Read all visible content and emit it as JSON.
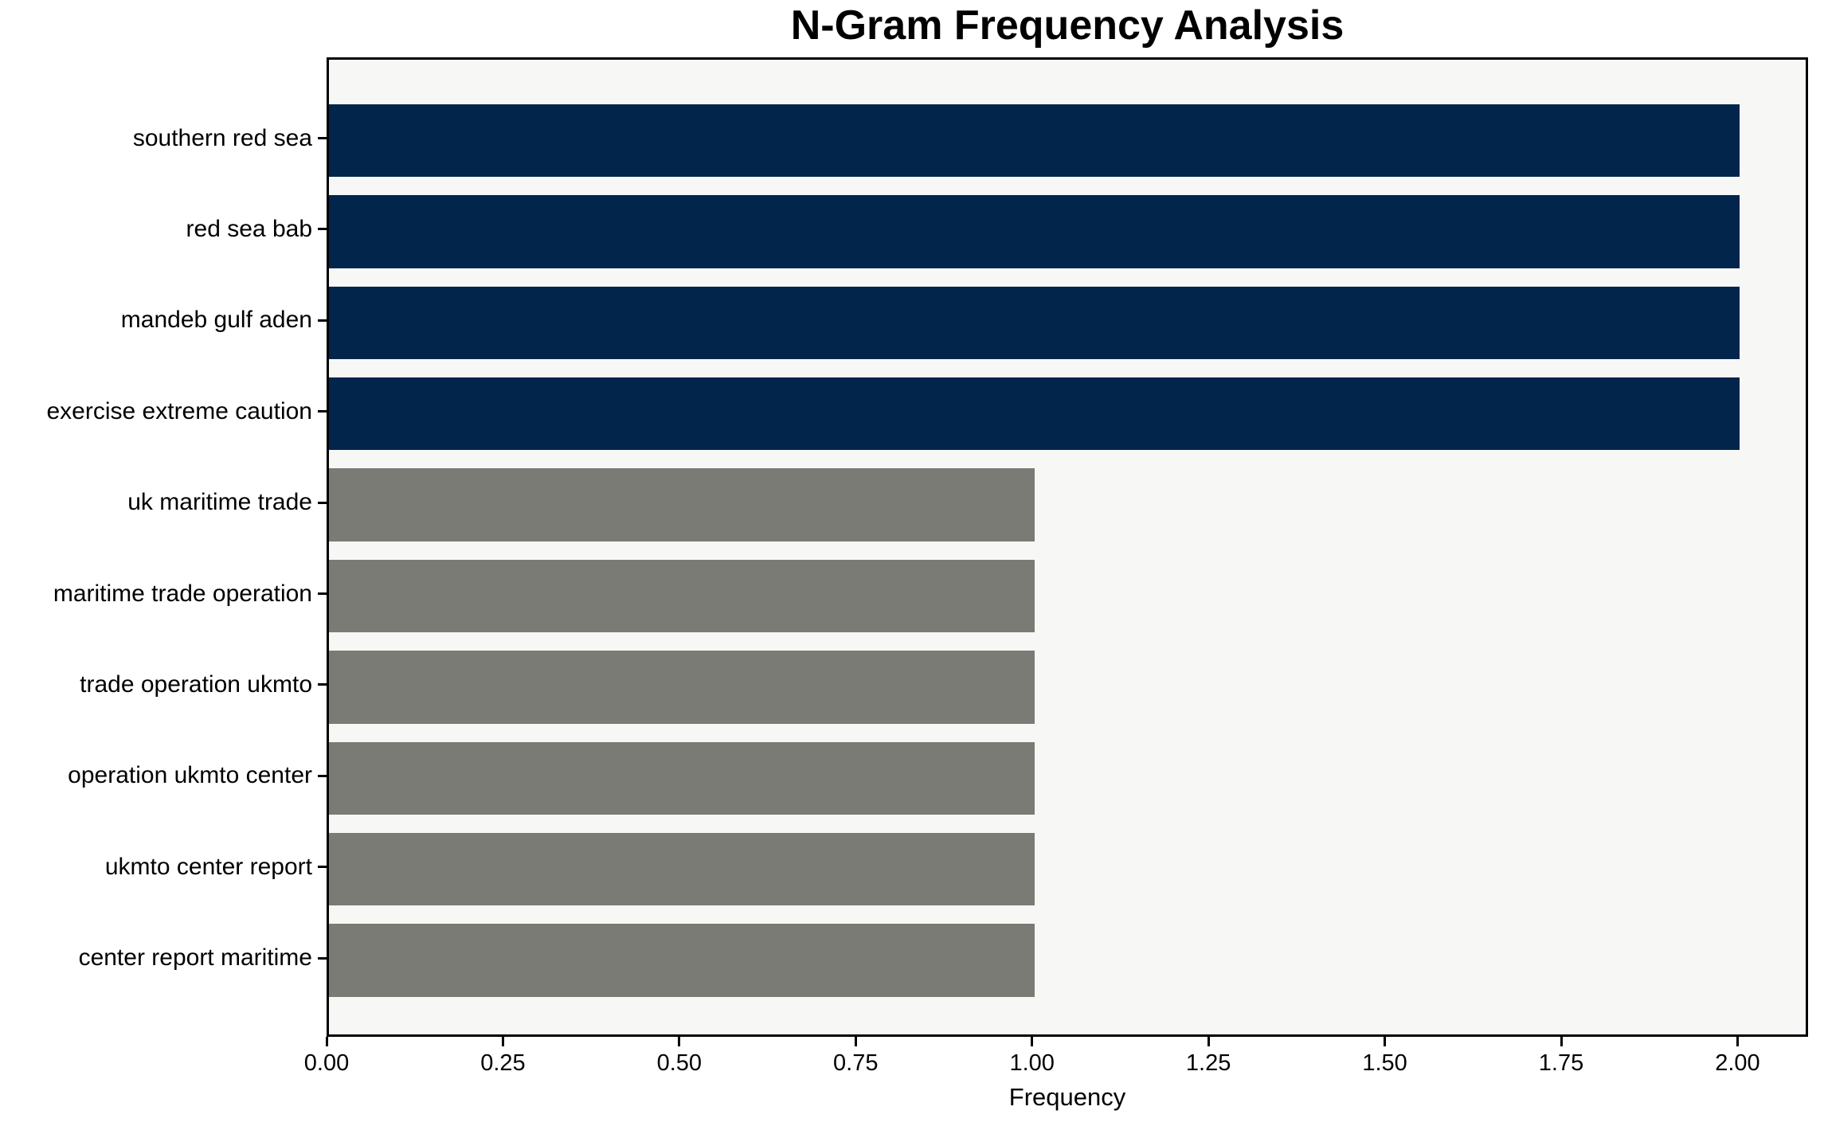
{
  "chart_data": {
    "type": "bar",
    "orientation": "horizontal",
    "title": "N-Gram Frequency Analysis",
    "xlabel": "Frequency",
    "ylabel": "",
    "categories": [
      "southern red sea",
      "red sea bab",
      "mandeb gulf aden",
      "exercise extreme caution",
      "uk maritime trade",
      "maritime trade operation",
      "trade operation ukmto",
      "operation ukmto center",
      "ukmto center report",
      "center report maritime"
    ],
    "values": [
      2,
      2,
      2,
      2,
      1,
      1,
      1,
      1,
      1,
      1
    ],
    "bar_colors": [
      "#02254c",
      "#02254c",
      "#02254c",
      "#02254c",
      "#7a7b75",
      "#7a7b75",
      "#7a7b75",
      "#7a7b75",
      "#7a7b75",
      "#7a7b75"
    ],
    "xlim": [
      0,
      2.1
    ],
    "x_tick_values": [
      0,
      0.25,
      0.5,
      0.75,
      1,
      1.25,
      1.5,
      1.75,
      2
    ],
    "x_tick_labels": [
      "0.00",
      "0.25",
      "0.50",
      "0.75",
      "1.00",
      "1.25",
      "1.50",
      "1.75",
      "2.00"
    ],
    "grid": false,
    "legend": null,
    "plot_background_color": "#f7f7f6",
    "spine_color": "#000000"
  }
}
